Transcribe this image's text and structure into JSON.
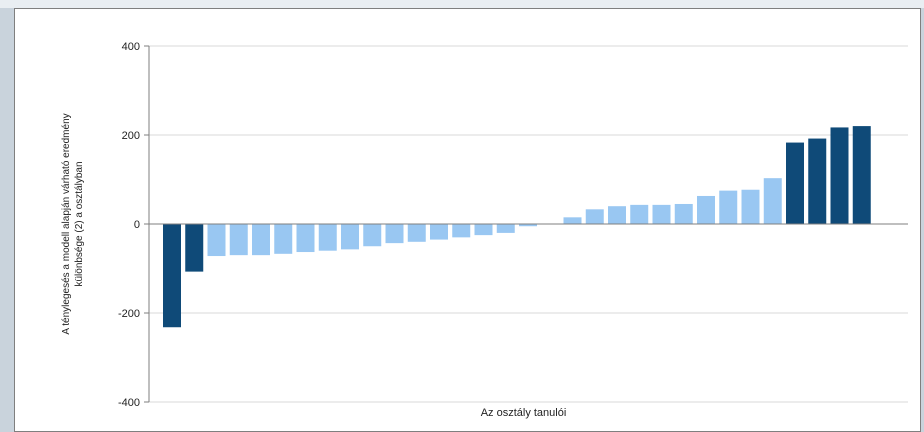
{
  "chart_data": {
    "type": "bar",
    "title": "",
    "xlabel": "Az osztály tanulói",
    "ylabel_lines": [
      "A ténylegesés a modell alapján várható eredmény",
      "különbsége (2) a osztályban"
    ],
    "ylim": [
      -400,
      400
    ],
    "yticks": [
      400,
      200,
      0,
      -200,
      -400
    ],
    "grid": true,
    "colors": {
      "highlight": "#0f4a78",
      "normal": "#99c7f2"
    },
    "series": [
      {
        "values": [
          -232,
          -107,
          -72,
          -70,
          -70,
          -67,
          -63,
          -60,
          -57,
          -50,
          -43,
          -40,
          -35,
          -30,
          -25,
          -20,
          -5,
          0,
          15,
          33,
          40,
          43,
          43,
          45,
          63,
          75,
          77,
          103,
          183,
          192,
          217,
          220
        ],
        "highlight": [
          true,
          true,
          false,
          false,
          false,
          false,
          false,
          false,
          false,
          false,
          false,
          false,
          false,
          false,
          false,
          false,
          false,
          false,
          false,
          false,
          false,
          false,
          false,
          false,
          false,
          false,
          false,
          false,
          true,
          true,
          true,
          true
        ]
      }
    ]
  }
}
